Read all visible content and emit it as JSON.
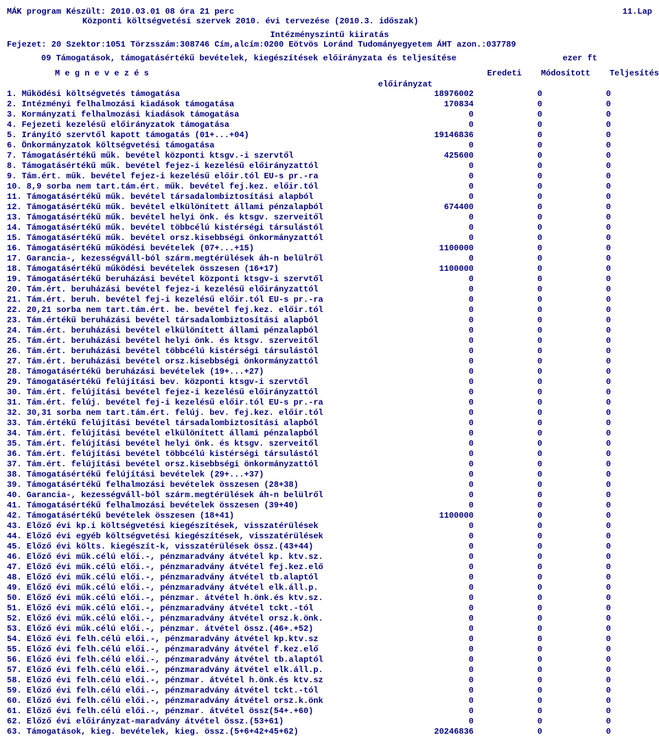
{
  "header": {
    "left1": "MÁK program Készült: 2010.03.01  08 óra 21 perc",
    "right1": "11.Lap",
    "sub1": "Központi költségvetési szervek 2010. évi tervezése (2010.3. időszak)",
    "center1": "Intézményszintű kiiratás",
    "line2_left": "Fejezet: 20  Szektor:1051  Törzsszám:308746   Cím,alcím:0200  Eötvös Loránd Tudományegyetem  ÁHT azon.:037789"
  },
  "section": {
    "title": "09 Támogatások, támogatásértékű bevételek, kiegészítések előirányzata és teljesítése",
    "unit": "ezer ft"
  },
  "colhead": {
    "name": "M e g n e v e z é s",
    "c1": "Eredeti",
    "c2": "Módosított",
    "c3": "Teljesítés",
    "sub": "előirányzat"
  },
  "rows": [
    {
      "n": " 1. Működési költségvetés támogatása",
      "v1": "18976002",
      "v2": "0",
      "v3": "0"
    },
    {
      "n": " 2. Intézményi felhalmozási kiadások támogatása",
      "v1": "170834",
      "v2": "0",
      "v3": "0"
    },
    {
      "n": " 3. Kormányzati felhalmozási kiadások támogatása",
      "v1": "0",
      "v2": "0",
      "v3": "0"
    },
    {
      "n": " 4. Fejezeti kezelésű előirányzatok támogatása",
      "v1": "0",
      "v2": "0",
      "v3": "0"
    },
    {
      "n": " 5. Irányító szervtől kapott támogatás (01+...+04)",
      "v1": "19146836",
      "v2": "0",
      "v3": "0"
    },
    {
      "n": " 6. Önkormányzatok költségvetési támogatása",
      "v1": "0",
      "v2": "0",
      "v3": "0"
    },
    {
      "n": " 7. Támogatásértékű műk. bevétel központi ktsgv.-i szervtől",
      "v1": "425600",
      "v2": "0",
      "v3": "0"
    },
    {
      "n": " 8. Támogatásértékű műk. bevétel fejez-i kezelésű előirányzattól",
      "v1": "0",
      "v2": "0",
      "v3": "0"
    },
    {
      "n": " 9. Tám.ért. műk. bevétel fejez-i kezelésű előir.tól EU-s pr.-ra",
      "v1": "0",
      "v2": "0",
      "v3": "0"
    },
    {
      "n": "10. 8,9 sorba nem tart.tám.ért. műk. bevétel fej.kez. előir.tól",
      "v1": "0",
      "v2": "0",
      "v3": "0"
    },
    {
      "n": "11. Támogatásértékű műk. bevétel társadalombiztosítási alapból",
      "v1": "0",
      "v2": "0",
      "v3": "0"
    },
    {
      "n": "12. Támogatásértékű műk. bevétel elkülönített állami pénzalapból",
      "v1": "674400",
      "v2": "0",
      "v3": "0"
    },
    {
      "n": "13. Támogatásértékű műk. bevétel helyi önk. és ktsgv. szerveitől",
      "v1": "0",
      "v2": "0",
      "v3": "0"
    },
    {
      "n": "14. Támogatásértékű műk. bevétel többcélú kistérségi társulástól",
      "v1": "0",
      "v2": "0",
      "v3": "0"
    },
    {
      "n": "15. Támogatásértékű műk. bevétel orsz.kisebbségi önkormányzattól",
      "v1": "0",
      "v2": "0",
      "v3": "0"
    },
    {
      "n": "16.  Támogatásértékű működési  bevételek (07+...+15)",
      "v1": "1100000",
      "v2": "0",
      "v3": "0"
    },
    {
      "n": "17. Garancia-, kezességváll-ból szárm.megtérülések áh-n belülről",
      "v1": "0",
      "v2": "0",
      "v3": "0"
    },
    {
      "n": "18.  Támogatásértékű működési  bevételek összesen (16+17)",
      "v1": "1100000",
      "v2": "0",
      "v3": "0"
    },
    {
      "n": "19. Támogatásértékű beruházási bevétel központi ktsgv-i szervtől",
      "v1": "0",
      "v2": "0",
      "v3": "0"
    },
    {
      "n": "20. Tám.ért. beruházási bevétel fejez-i kezelésű előirányzattól",
      "v1": "0",
      "v2": "0",
      "v3": "0"
    },
    {
      "n": "21. Tám.ért. beruh. bevétel fej-i kezelésű előir.tól EU-s pr.-ra",
      "v1": "0",
      "v2": "0",
      "v3": "0"
    },
    {
      "n": "22. 20,21 sorba nem tart.tám.ért. be. bevétel fej.kez. előir.tól",
      "v1": "0",
      "v2": "0",
      "v3": "0"
    },
    {
      "n": "23. Tám.értékű beruházási bevétel társadalombiztosítási alapból",
      "v1": "0",
      "v2": "0",
      "v3": "0"
    },
    {
      "n": "24. Tám.ért. beruházási bevétel elkülönített állami pénzalapból",
      "v1": "0",
      "v2": "0",
      "v3": "0"
    },
    {
      "n": "25. Tám.ért. beruházási bevétel helyi önk. és ktsgv. szerveitől",
      "v1": "0",
      "v2": "0",
      "v3": "0"
    },
    {
      "n": "26. Tám.ért. beruházási bevétel többcélú kistérségi társulástól",
      "v1": "0",
      "v2": "0",
      "v3": "0"
    },
    {
      "n": "27. Tám.ért. beruházási bevétel orsz.kisebbségi önkormányzattól",
      "v1": "0",
      "v2": "0",
      "v3": "0"
    },
    {
      "n": "28.  Támogatásértékű beruházási bevételek (19+...+27)",
      "v1": "0",
      "v2": "0",
      "v3": "0"
    },
    {
      "n": "29. Támogatásértékű felújítási bev. központi ktsgv-i szervtől",
      "v1": "0",
      "v2": "0",
      "v3": "0"
    },
    {
      "n": "30. Tám.ért. felújítási bevétel fejez-i kezelésű előirányzattól",
      "v1": "0",
      "v2": "0",
      "v3": "0"
    },
    {
      "n": "31. Tám.ért. felúj. bevétel fej-i kezelésű előir.tól EU-s pr.-ra",
      "v1": "0",
      "v2": "0",
      "v3": "0"
    },
    {
      "n": "32. 30,31 sorba nem tart.tám.ért. felúj. bev. fej.kez. előir.tól",
      "v1": "0",
      "v2": "0",
      "v3": "0"
    },
    {
      "n": "33. Tám.értékű felújítási bevétel társadalombiztosítási alapból",
      "v1": "0",
      "v2": "0",
      "v3": "0"
    },
    {
      "n": "34. Tám.ért. felújítási bevétel elkülönített állami pénzalapból",
      "v1": "0",
      "v2": "0",
      "v3": "0"
    },
    {
      "n": "35. Tám.ért. felújítási bevétel helyi önk. és ktsgv. szerveitől",
      "v1": "0",
      "v2": "0",
      "v3": "0"
    },
    {
      "n": "36. Tám.ért. felújítási bevétel többcélú kistérségi társulástól",
      "v1": "0",
      "v2": "0",
      "v3": "0"
    },
    {
      "n": "37. Tám.ért. felújítási bevétel orsz.kisebbségi önkormányzattól",
      "v1": "0",
      "v2": "0",
      "v3": "0"
    },
    {
      "n": "38.  Támogatásértékű felújítási bevételek (29+...+37)",
      "v1": "0",
      "v2": "0",
      "v3": "0"
    },
    {
      "n": "39.  Támogatásértékű felhalmozási bevételek összesen (28+38)",
      "v1": "0",
      "v2": "0",
      "v3": "0"
    },
    {
      "n": "40. Garancia-, kezességváll-ból szárm.megtérülések áh-n belülről",
      "v1": "0",
      "v2": "0",
      "v3": "0"
    },
    {
      "n": "41.  Támogatásértékű felhalmozási bevételek összesen (39+40)",
      "v1": "0",
      "v2": "0",
      "v3": "0"
    },
    {
      "n": "42.  Támogatásértékű bevételek összesen (18+41)",
      "v1": "1100000",
      "v2": "0",
      "v3": "0"
    },
    {
      "n": "43. Előző évi kp.i költségvetési kiegészítések, visszatérülések",
      "v1": "0",
      "v2": "0",
      "v3": "0"
    },
    {
      "n": "44. Előző évi egyéb költségvetési kiegészítések, visszatérülések",
      "v1": "0",
      "v2": "0",
      "v3": "0"
    },
    {
      "n": "45.  Előző évi költs. kiegészít-k, visszatérülések össz.(43+44)",
      "v1": "0",
      "v2": "0",
      "v3": "0"
    },
    {
      "n": "46. Előző évi műk.célú elői.-, pénzmaradvány átvétel kp. ktv.sz.",
      "v1": "0",
      "v2": "0",
      "v3": "0"
    },
    {
      "n": "47. Előző évi műk.célú elői.-, pénzmaradvány átvétel fej.kez.elő",
      "v1": "0",
      "v2": "0",
      "v3": "0"
    },
    {
      "n": "48. Előző évi műk.célú elői.-, pénzmaradvány átvétel tb.alaptól",
      "v1": "0",
      "v2": "0",
      "v3": "0"
    },
    {
      "n": "49. Előző évi műk.célú elői.-, pénzmaradvány átvétel elk.áll.p.",
      "v1": "0",
      "v2": "0",
      "v3": "0"
    },
    {
      "n": "50. Előző évi műk.célú elői.-, pénzmar. átvétel h.önk.és ktv.sz.",
      "v1": "0",
      "v2": "0",
      "v3": "0"
    },
    {
      "n": "51. Előző évi műk.célú elői.-, pénzmaradvány átvétel tckt.-tól",
      "v1": "0",
      "v2": "0",
      "v3": "0"
    },
    {
      "n": "52. Előző évi műk.célú elői.-, pénzmaradvány átvétel orsz.k.önk.",
      "v1": "0",
      "v2": "0",
      "v3": "0"
    },
    {
      "n": "53.  Előző évi műk.célú elői.-, pénzmar. átvétel össz.(46+.+52)",
      "v1": "0",
      "v2": "0",
      "v3": "0"
    },
    {
      "n": "54. Előző évi felh.célú elői.-, pénzmaradvány átvétel kp.ktv.sz",
      "v1": "0",
      "v2": "0",
      "v3": "0"
    },
    {
      "n": "55. Előző évi felh.célú elői.-, pénzmaradvány átvétel f.kez.elő",
      "v1": "0",
      "v2": "0",
      "v3": "0"
    },
    {
      "n": "56. Előző évi felh.célú elői.-, pénzmaradvány átvétel tb.alaptól",
      "v1": "0",
      "v2": "0",
      "v3": "0"
    },
    {
      "n": "57. Előző évi felh.célú elői.-, pénzmaradvány átvétel elk.áll.p.",
      "v1": "0",
      "v2": "0",
      "v3": "0"
    },
    {
      "n": "58. Előző évi felh.célú elői.-, pénzmar. átvétel h.önk.és ktv.sz",
      "v1": "0",
      "v2": "0",
      "v3": "0"
    },
    {
      "n": "59. Előző évi felh.célú elői.-, pénzmaradvány átvétel tckt.-tól",
      "v1": "0",
      "v2": "0",
      "v3": "0"
    },
    {
      "n": "60. Előző évi felh.célú elői.-, pénzmaradvány átvétel orsz.k.önk",
      "v1": "0",
      "v2": "0",
      "v3": "0"
    },
    {
      "n": "61.  Előző évi felh.célú elői.-, pénzmar. átvétel össz(54+.+60)",
      "v1": "0",
      "v2": "0",
      "v3": "0"
    },
    {
      "n": "62.  Előző évi előirányzat-maradvány átvétel össz.(53+61)",
      "v1": "0",
      "v2": "0",
      "v3": "0"
    },
    {
      "n": "63.  Támogatások, kieg. bevételek, kieg. össz.(5+6+42+45+62)",
      "v1": "20246836",
      "v2": "0",
      "v3": "0"
    }
  ]
}
